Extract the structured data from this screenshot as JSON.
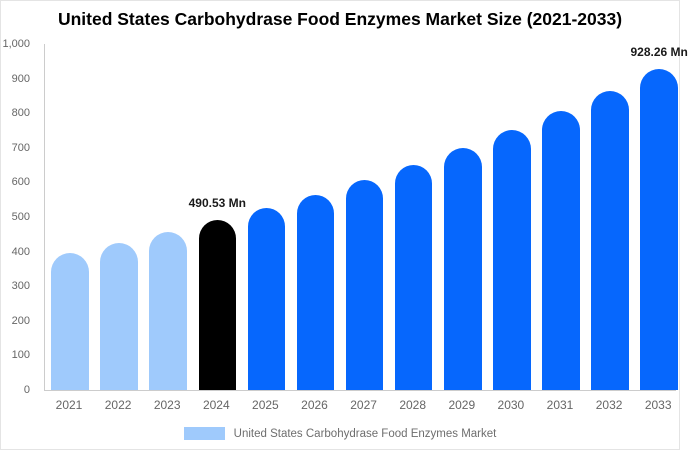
{
  "title": "United States Carbohydrase Food Enzymes Market Size (2021-2033)",
  "chart_data": {
    "type": "bar",
    "title": "United States Carbohydrase Food Enzymes Market Size (2021-2033)",
    "categories": [
      "2021",
      "2022",
      "2023",
      "2024",
      "2025",
      "2026",
      "2027",
      "2028",
      "2029",
      "2030",
      "2031",
      "2032",
      "2033"
    ],
    "values": [
      396,
      426,
      457,
      490.53,
      527,
      565,
      607,
      651,
      699,
      751,
      806,
      865,
      928.26
    ],
    "unit": "Mn",
    "roles": [
      "historical",
      "historical",
      "historical",
      "highlight",
      "forecast",
      "forecast",
      "forecast",
      "forecast",
      "forecast",
      "forecast",
      "forecast",
      "forecast",
      "forecast"
    ],
    "palette": {
      "historical": "#9fcafc",
      "highlight": "#000000",
      "forecast": "#0667fd"
    },
    "annotations": [
      {
        "category": "2024",
        "text": "490.53 Mn"
      },
      {
        "category": "2033",
        "text": "928.26 Mn"
      }
    ],
    "xlabel": "",
    "ylabel": "",
    "ylim": [
      0,
      1000
    ],
    "ytick_step": 100,
    "ytick_labels": [
      "0",
      "100",
      "200",
      "300",
      "400",
      "500",
      "600",
      "700",
      "800",
      "900",
      "1,000"
    ],
    "grid": false,
    "axis_color": "#cccccc",
    "tick_text_color": "#666666",
    "legend_position": "bottom-center",
    "legend": [
      {
        "label": "United States Carbohydrase Food Enzymes Market",
        "color": "#9fcafc"
      }
    ]
  }
}
